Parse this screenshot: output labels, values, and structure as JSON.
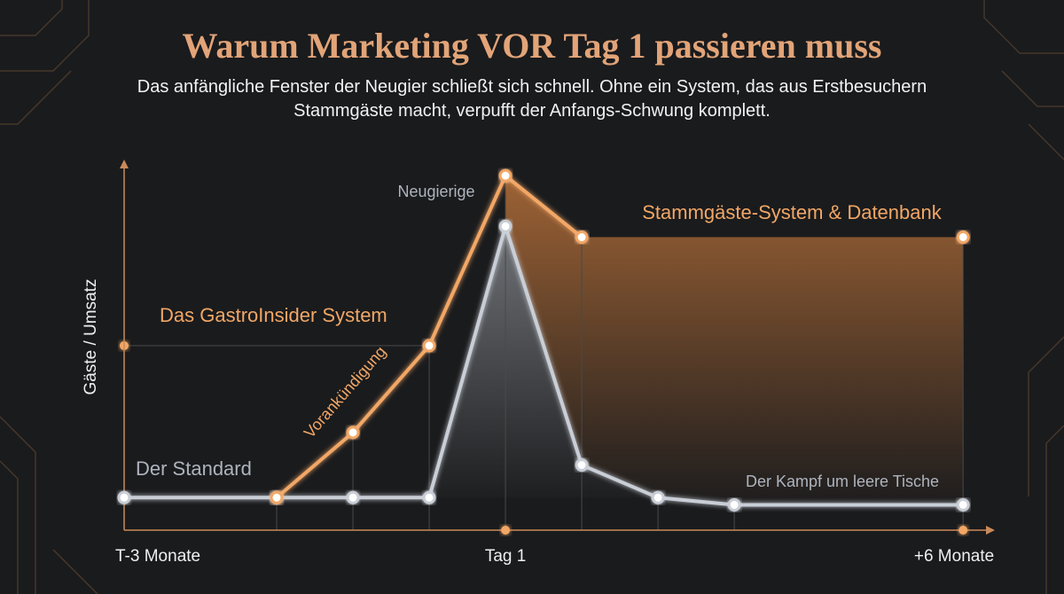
{
  "chart_data": {
    "type": "line",
    "title": "Warum Marketing VOR Tag 1 passieren muss",
    "subtitle": "Das anfängliche Fenster der Neugier schließt sich schnell. Ohne ein System, das aus Erstbesuchern Stammgäste macht, verpufft der Anfangs-Schwung komplett.",
    "y_label": "Gäste / Umsatz",
    "x": [
      0,
      2,
      3,
      4,
      5,
      6,
      7,
      8,
      11
    ],
    "xlim": [
      0,
      11.3
    ],
    "xticks": [
      {
        "value": 0,
        "label": "T-3 Monate"
      },
      {
        "value": 5,
        "label": "Tag 1"
      },
      {
        "value": 11,
        "label": "+6 Monate"
      }
    ],
    "ylim": [
      0,
      100
    ],
    "series": [
      {
        "name": "Der Standard",
        "color": "#c9ced6",
        "values": [
          9,
          9,
          9,
          9,
          84,
          18,
          9,
          7,
          7
        ]
      },
      {
        "name": "Das GastroInsider System",
        "color": "#f2a766",
        "values": [
          null,
          9,
          27,
          51,
          98,
          81,
          null,
          null,
          81
        ]
      }
    ],
    "annotations": [
      "Neugierige",
      "Stammgäste-System & Datenbank",
      "Vorankündigung",
      "Der Kampf um leere Tische"
    ]
  }
}
